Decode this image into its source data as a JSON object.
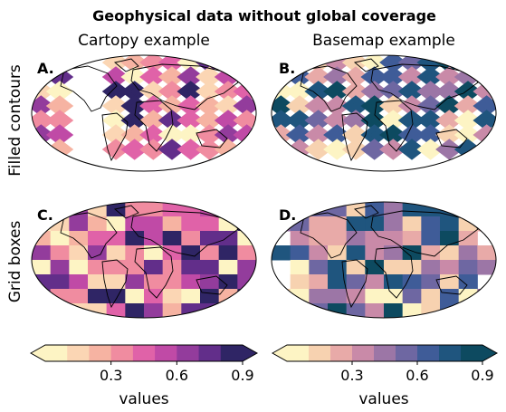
{
  "figure": {
    "title": "Geophysical data without global coverage",
    "column_titles": [
      "Cartopy example",
      "Basemap example"
    ],
    "row_labels": [
      "Filled contours",
      "Grid boxes"
    ]
  },
  "chart_data": [
    {
      "type": "heatmap",
      "panel_label": "A.",
      "style": "filled-contours",
      "projection": "Robinson",
      "colormap": [
        "#fdf4c4",
        "#fbd6b4",
        "#f6b3a2",
        "#f08ca0",
        "#e062a8",
        "#c04aa6",
        "#933c9c",
        "#622e8a",
        "#2f2565"
      ],
      "colormap_name": "magma-like (light to dark purple)",
      "lon_gaps_deg": [
        [
          -110,
          -80
        ]
      ],
      "missing_latitude_band_south": true
    },
    {
      "type": "heatmap",
      "panel_label": "B.",
      "style": "filled-contours",
      "projection": "Robinson",
      "colormap": [
        "#fdf4c4",
        "#f7d2b0",
        "#e8aaa8",
        "#c98aa8",
        "#9c76a6",
        "#6e67a2",
        "#3f5c98",
        "#1f557e",
        "#0d4a60"
      ],
      "colormap_name": "pink-to-teal",
      "missing_latitude_band_south": true
    },
    {
      "type": "heatmap",
      "panel_label": "C.",
      "style": "grid-boxes",
      "projection": "Robinson",
      "colormap": [
        "#fdf4c4",
        "#fbd6b4",
        "#f6b3a2",
        "#f08ca0",
        "#e062a8",
        "#c04aa6",
        "#933c9c",
        "#622e8a",
        "#2f2565"
      ]
    },
    {
      "type": "heatmap",
      "panel_label": "D.",
      "style": "grid-boxes",
      "projection": "Robinson",
      "colormap": [
        "#fdf4c4",
        "#f7d2b0",
        "#e8aaa8",
        "#c98aa8",
        "#9c76a6",
        "#6e67a2",
        "#3f5c98",
        "#1f557e",
        "#0d4a60"
      ]
    }
  ],
  "colorbars": [
    {
      "label": "values",
      "ticks": [
        "0.3",
        "0.6",
        "0.9"
      ],
      "tick_values": [
        0.3,
        0.6,
        0.9
      ],
      "range": [
        0.0,
        0.9
      ],
      "extend": "both",
      "colors": [
        "#fdf4c4",
        "#fbd6b4",
        "#f6b3a2",
        "#f08ca0",
        "#e062a8",
        "#c04aa6",
        "#933c9c",
        "#622e8a",
        "#2f2565"
      ]
    },
    {
      "label": "values",
      "ticks": [
        "0.3",
        "0.6",
        "0.9"
      ],
      "tick_values": [
        0.3,
        0.6,
        0.9
      ],
      "range": [
        0.0,
        0.9
      ],
      "extend": "both",
      "colors": [
        "#fdf4c4",
        "#f7d2b0",
        "#e8aaa8",
        "#c98aa8",
        "#9c76a6",
        "#6e67a2",
        "#3f5c98",
        "#1f557e",
        "#0d4a60"
      ]
    }
  ]
}
